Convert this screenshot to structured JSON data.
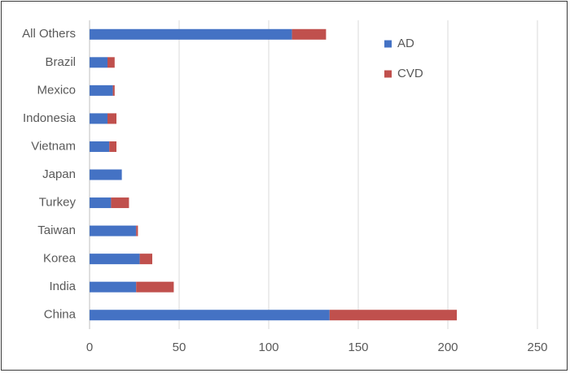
{
  "chart_data": {
    "type": "bar",
    "orientation": "horizontal",
    "stacked": true,
    "categories": [
      "China",
      "India",
      "Korea",
      "Taiwan",
      "Turkey",
      "Japan",
      "Vietnam",
      "Indonesia",
      "Mexico",
      "Brazil",
      "All Others"
    ],
    "series": [
      {
        "name": "AD",
        "color": "#4472c4",
        "values": [
          134,
          26,
          28,
          26,
          12,
          18,
          11,
          10,
          13,
          10,
          113
        ]
      },
      {
        "name": "CVD",
        "color": "#c0504d",
        "values": [
          71,
          21,
          7,
          1,
          10,
          0,
          4,
          5,
          1,
          4,
          19
        ]
      }
    ],
    "xlim": [
      0,
      250
    ],
    "xticks": [
      0,
      50,
      100,
      150,
      200,
      250
    ],
    "grid": true,
    "legend_position": "top-right",
    "title": "",
    "xlabel": "",
    "ylabel": ""
  }
}
